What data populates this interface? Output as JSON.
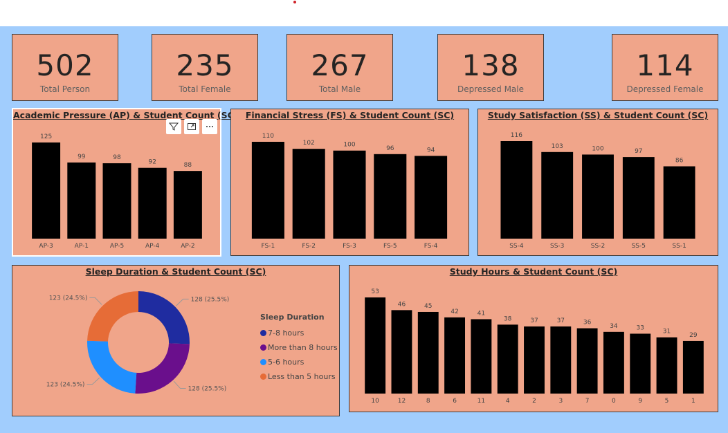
{
  "kpis": [
    {
      "value": "502",
      "label": "Total Person"
    },
    {
      "value": "235",
      "label": "Total Female"
    },
    {
      "value": "267",
      "label": "Total Male"
    },
    {
      "value": "138",
      "label": "Depressed Male"
    },
    {
      "value": "114",
      "label": "Depressed Female"
    }
  ],
  "toolbar": {
    "filter_icon": "filter-icon",
    "focus_icon": "focus-mode-icon",
    "more_icon": "more-options-icon"
  },
  "colors": {
    "canvas": "#a1cdfd",
    "card": "#f0a58a",
    "bar": "#000000",
    "accent_red": "#d0232a",
    "sleep_7_8": "#1f2ca0",
    "sleep_more_8": "#6a0f8c",
    "sleep_5_6": "#1f8fff",
    "sleep_less_5": "#e66c37"
  },
  "chart_data": [
    {
      "type": "bar",
      "title": "Academic Pressure (AP) & Student Count (SC)",
      "categories": [
        "AP-3",
        "AP-1",
        "AP-5",
        "AP-4",
        "AP-2"
      ],
      "values": [
        125,
        99,
        98,
        92,
        88
      ],
      "ylim": [
        0,
        125
      ]
    },
    {
      "type": "bar",
      "title": "Financial Stress (FS) & Student Count (SC)",
      "categories": [
        "FS-1",
        "FS-2",
        "FS-3",
        "FS-5",
        "FS-4"
      ],
      "values": [
        110,
        102,
        100,
        96,
        94
      ],
      "ylim": [
        0,
        110
      ]
    },
    {
      "type": "bar",
      "title": "Study Satisfaction (SS) & Student Count (SC)",
      "categories": [
        "SS-4",
        "SS-3",
        "SS-2",
        "SS-5",
        "SS-1"
      ],
      "values": [
        116,
        103,
        100,
        97,
        86
      ],
      "ylim": [
        0,
        116
      ]
    },
    {
      "type": "pie",
      "title": "Sleep Duration & Student Count (SC)",
      "legend_title": "Sleep Duration",
      "categories": [
        "7-8 hours",
        "More than 8 hours",
        "5-6 hours",
        "Less than 5 hours"
      ],
      "values": [
        128,
        128,
        123,
        123
      ],
      "labels": [
        "128 (25.5%)",
        "128 (25.5%)",
        "123 (24.5%)",
        "123 (24.5%)"
      ],
      "legend_position": "right"
    },
    {
      "type": "bar",
      "title": "Study Hours & Student Count (SC)",
      "categories": [
        "10",
        "12",
        "8",
        "6",
        "11",
        "4",
        "2",
        "3",
        "7",
        "0",
        "9",
        "5",
        "1"
      ],
      "values": [
        53,
        46,
        45,
        42,
        41,
        38,
        37,
        37,
        36,
        34,
        33,
        31,
        29
      ],
      "ylim": [
        0,
        53
      ]
    }
  ]
}
